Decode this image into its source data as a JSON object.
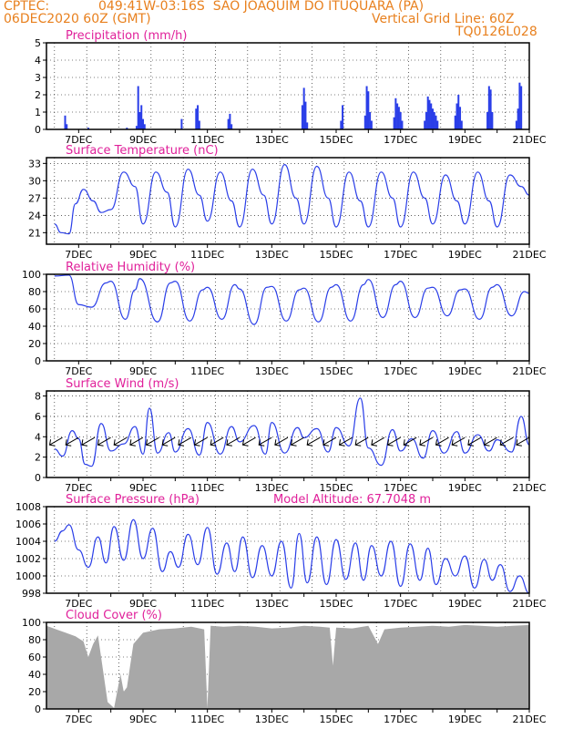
{
  "header": {
    "source": "CPTEC:",
    "location": "049:41W-03:16S  SAO JOAQUIM DO ITUQUARA (PA)",
    "run": "06DEC2020 60Z (GMT)",
    "grid_line": "Vertical Grid Line: 60Z",
    "code": "TQ0126L028"
  },
  "colors": {
    "header": "#e8801e",
    "title": "#e0209a",
    "line": "#2a3ee8",
    "bar": "#2a3ee8",
    "cloud": "#a8a8a8",
    "arrow": "#000000"
  },
  "x_axis": {
    "range": [
      "2020-12-06 00Z",
      "2020-12-21 00Z"
    ],
    "tick_labels": [
      "7DEC",
      "9DEC",
      "11DEC",
      "13DEC",
      "15DEC",
      "17DEC",
      "19DEC",
      "21DEC"
    ],
    "grid_every": "6Z daily"
  },
  "panels": [
    {
      "title": "Precipitation (mm/h)",
      "type": "bar",
      "yrange": [
        0,
        5
      ],
      "yticks": [
        "0",
        "1",
        "2",
        "3",
        "4",
        "5"
      ]
    },
    {
      "title": "Surface Temperature (nC)",
      "type": "line",
      "yrange": [
        19,
        34
      ],
      "yticks": [
        "21",
        "24",
        "27",
        "30",
        "33"
      ]
    },
    {
      "title": "Relative Humidity (%)",
      "type": "line",
      "yrange": [
        0,
        100
      ],
      "yticks": [
        "0",
        "20",
        "40",
        "60",
        "80",
        "100"
      ]
    },
    {
      "title": "Surface Wind (m/s)",
      "type": "line+arrows",
      "yrange": [
        0,
        8.5
      ],
      "yticks": [
        "0",
        "2",
        "4",
        "6",
        "8"
      ]
    },
    {
      "title": "Surface Pressure (hPa)",
      "extra": "Model Altitude: 67.7048 m",
      "type": "line",
      "yrange": [
        998,
        1008
      ],
      "yticks": [
        "998",
        "1000",
        "1002",
        "1004",
        "1006",
        "1008"
      ]
    },
    {
      "title": "Cloud Cover (%)",
      "type": "area",
      "yrange": [
        0,
        100
      ],
      "yticks": [
        "0",
        "20",
        "40",
        "60",
        "80",
        "100"
      ]
    }
  ],
  "chart_data": [
    {
      "type": "bar",
      "title": "Precipitation (mm/h)",
      "x_unit": "days since 06DEC2020 00Z",
      "x": [
        0.58,
        0.63,
        1.3,
        2.5,
        2.8,
        2.85,
        2.9,
        2.95,
        3.0,
        3.05,
        4.2,
        4.65,
        4.7,
        4.75,
        5.65,
        5.7,
        5.75,
        7.95,
        8.0,
        8.05,
        8.1,
        9.15,
        9.2,
        9.9,
        9.95,
        10.0,
        10.05,
        10.1,
        10.8,
        10.85,
        10.9,
        10.95,
        11.0,
        11.05,
        11.75,
        11.8,
        11.85,
        11.9,
        11.95,
        12.0,
        12.05,
        12.1,
        12.15,
        12.7,
        12.75,
        12.8,
        12.85,
        12.9,
        13.7,
        13.75,
        13.8,
        13.85,
        14.6,
        14.65,
        14.7,
        14.75
      ],
      "values": [
        0.8,
        0.3,
        0.1,
        0.1,
        0.2,
        2.5,
        1.0,
        1.4,
        0.6,
        0.3,
        0.6,
        1.2,
        1.4,
        0.5,
        0.6,
        0.9,
        0.3,
        1.4,
        2.4,
        1.6,
        0.4,
        0.5,
        1.4,
        0.8,
        2.5,
        2.2,
        1.0,
        0.5,
        0.7,
        1.8,
        1.5,
        1.3,
        1.0,
        0.5,
        0.5,
        1.0,
        1.9,
        1.7,
        1.5,
        1.2,
        1.0,
        0.8,
        0.5,
        0.8,
        1.5,
        2.0,
        1.3,
        0.5,
        1.0,
        2.5,
        2.3,
        1.0,
        0.5,
        1.2,
        2.7,
        2.5
      ],
      "ylim": [
        0,
        5
      ]
    },
    {
      "type": "line",
      "title": "Surface Temperature (nC)",
      "x_unit": "days since 06DEC2020 00Z",
      "x": [
        0.25,
        0.45,
        0.7,
        0.9,
        1.15,
        1.45,
        1.7,
        2.0,
        2.4,
        2.75,
        3.0,
        3.4,
        3.75,
        4.0,
        4.4,
        4.75,
        5.0,
        5.4,
        5.75,
        6.0,
        6.4,
        6.75,
        7.0,
        7.4,
        7.75,
        8.0,
        8.4,
        8.75,
        9.0,
        9.4,
        9.75,
        10.0,
        10.4,
        10.75,
        11.0,
        11.4,
        11.75,
        12.0,
        12.4,
        12.75,
        13.0,
        13.4,
        13.75,
        14.0,
        14.4,
        14.75,
        15.0
      ],
      "values": [
        22.5,
        21.0,
        20.8,
        26.0,
        28.5,
        26.5,
        24.5,
        25.0,
        31.5,
        29.0,
        22.5,
        31.5,
        28.0,
        22.0,
        32.0,
        27.5,
        23.0,
        31.5,
        26.5,
        22.0,
        32.0,
        27.5,
        22.5,
        32.8,
        27.0,
        22.5,
        32.5,
        27.0,
        22.0,
        31.5,
        26.5,
        22.0,
        31.5,
        27.0,
        22.0,
        31.5,
        27.0,
        22.5,
        31.0,
        26.5,
        22.5,
        31.5,
        26.5,
        22.0,
        31.0,
        29.0,
        27.5
      ],
      "ylim": [
        19,
        34
      ]
    },
    {
      "type": "line",
      "title": "Relative Humidity (%)",
      "x_unit": "days since 06DEC2020 00Z",
      "x": [
        0.25,
        0.7,
        1.0,
        1.4,
        1.85,
        2.0,
        2.45,
        2.75,
        2.9,
        3.45,
        3.85,
        4.0,
        4.45,
        4.85,
        5.0,
        5.45,
        5.85,
        6.0,
        6.45,
        6.85,
        7.0,
        7.45,
        7.85,
        8.0,
        8.45,
        8.85,
        9.0,
        9.45,
        9.85,
        10.0,
        10.45,
        10.85,
        11.0,
        11.45,
        11.85,
        12.0,
        12.45,
        12.85,
        13.0,
        13.45,
        13.85,
        14.0,
        14.45,
        14.85,
        15.0
      ],
      "values": [
        98,
        99,
        65,
        62,
        90,
        92,
        48,
        82,
        95,
        45,
        90,
        92,
        46,
        82,
        85,
        48,
        88,
        83,
        42,
        85,
        86,
        46,
        82,
        84,
        45,
        85,
        88,
        46,
        88,
        94,
        50,
        88,
        92,
        50,
        84,
        85,
        52,
        82,
        83,
        48,
        85,
        88,
        52,
        80,
        78
      ],
      "ylim": [
        0,
        100
      ]
    },
    {
      "type": "line",
      "title": "Surface Wind (m/s)",
      "x_unit": "days since 06DEC2020 00Z",
      "x": [
        0.25,
        0.5,
        0.8,
        1.0,
        1.2,
        1.4,
        1.7,
        2.0,
        2.4,
        2.75,
        3.0,
        3.2,
        3.45,
        3.8,
        4.0,
        4.4,
        4.75,
        5.0,
        5.4,
        5.75,
        6.0,
        6.45,
        6.8,
        7.0,
        7.4,
        7.8,
        8.0,
        8.4,
        8.75,
        9.0,
        9.4,
        9.75,
        10.0,
        10.4,
        10.75,
        11.0,
        11.35,
        11.7,
        12.0,
        12.35,
        12.75,
        13.0,
        13.4,
        13.75,
        14.0,
        14.45,
        14.75,
        15.0
      ],
      "values": [
        2.8,
        2.1,
        4.6,
        3.8,
        1.3,
        1.1,
        5.3,
        2.6,
        3.3,
        5.0,
        2.3,
        6.8,
        2.4,
        4.4,
        2.5,
        4.8,
        2.2,
        5.4,
        2.3,
        5.0,
        3.5,
        5.1,
        2.3,
        5.4,
        2.4,
        4.9,
        3.9,
        4.8,
        2.5,
        4.9,
        3.1,
        7.8,
        2.9,
        1.2,
        4.7,
        2.6,
        3.8,
        1.9,
        4.6,
        2.4,
        4.5,
        2.4,
        4.2,
        2.6,
        3.7,
        2.5,
        6.0,
        3.2
      ],
      "ylim": [
        0,
        8.5
      ]
    },
    {
      "type": "line",
      "title": "Surface Pressure (hPa)",
      "x_unit": "days since 06DEC2020 00Z",
      "x": [
        0.25,
        0.5,
        0.7,
        1.0,
        1.3,
        1.6,
        1.85,
        2.1,
        2.4,
        2.7,
        3.0,
        3.3,
        3.6,
        3.85,
        4.1,
        4.4,
        4.7,
        5.0,
        5.3,
        5.6,
        5.85,
        6.1,
        6.4,
        6.7,
        7.0,
        7.3,
        7.6,
        7.85,
        8.1,
        8.4,
        8.7,
        9.0,
        9.3,
        9.6,
        9.85,
        10.1,
        10.4,
        10.7,
        11.0,
        11.3,
        11.6,
        11.85,
        12.1,
        12.4,
        12.7,
        13.0,
        13.3,
        13.6,
        13.85,
        14.1,
        14.4,
        14.7,
        15.0
      ],
      "values": [
        1004.0,
        1005.2,
        1005.9,
        1003.0,
        1001.0,
        1004.5,
        1001.5,
        1005.7,
        1001.8,
        1006.5,
        1002.0,
        1005.5,
        1000.5,
        1002.8,
        1001.0,
        1004.8,
        1001.3,
        1005.6,
        1000.2,
        1003.8,
        1000.5,
        1004.5,
        999.8,
        1003.5,
        1000.0,
        1004.0,
        998.6,
        1004.9,
        999.2,
        1004.5,
        999.0,
        1004.2,
        999.6,
        1003.8,
        999.5,
        1003.5,
        1000.0,
        1004.0,
        998.8,
        1003.7,
        999.5,
        1003.2,
        999.0,
        1002.0,
        1000.0,
        1002.3,
        998.6,
        1001.9,
        999.5,
        1001.3,
        998.2,
        1000.0,
        998.0
      ],
      "ylim": [
        998,
        1008
      ]
    },
    {
      "type": "area",
      "title": "Cloud Cover (%)",
      "x_unit": "days since 06DEC2020 00Z",
      "x": [
        0.0,
        0.3,
        0.6,
        0.9,
        1.15,
        1.3,
        1.45,
        1.6,
        1.9,
        2.1,
        2.3,
        2.4,
        2.5,
        2.7,
        3.0,
        3.5,
        4.0,
        4.5,
        4.9,
        5.0,
        5.1,
        5.5,
        6.0,
        6.5,
        7.0,
        7.5,
        8.0,
        8.5,
        8.8,
        8.9,
        9.0,
        9.5,
        10.0,
        10.3,
        10.5,
        11.0,
        11.5,
        12.0,
        12.5,
        13.0,
        13.5,
        14.0,
        14.5,
        15.0
      ],
      "values": [
        96,
        92,
        88,
        84,
        78,
        60,
        75,
        85,
        8,
        1,
        40,
        20,
        25,
        75,
        88,
        92,
        93,
        95,
        92,
        1,
        96,
        95,
        96,
        95,
        93,
        94,
        96,
        95,
        94,
        50,
        94,
        93,
        96,
        75,
        92,
        94,
        95,
        96,
        95,
        97,
        96,
        95,
        96,
        97
      ],
      "ylim": [
        0,
        100
      ]
    }
  ]
}
